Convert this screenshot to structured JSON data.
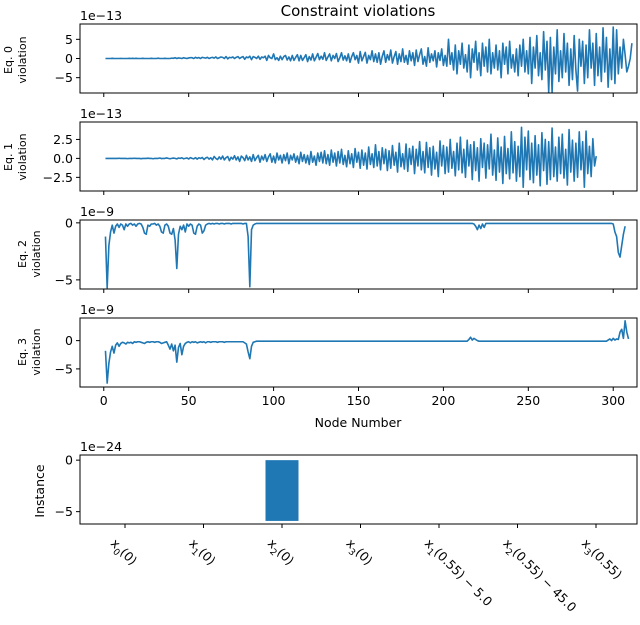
{
  "colors": {
    "series": "#1f77b4",
    "axis": "#000000",
    "background": "#ffffff"
  },
  "title": "Constraint violations",
  "xlabel": "Node Number",
  "chart_data": [
    {
      "type": "line",
      "name": "eq0",
      "ylabel_line1": "Eq. 0",
      "ylabel_line2": "violation",
      "scale_label": "1e−13",
      "ylim": [
        -9,
        9
      ],
      "xlim": [
        -14,
        314
      ],
      "yticks": [
        -5,
        0,
        5
      ],
      "ytick_labels": [
        "−5",
        "0",
        "5"
      ],
      "x_start": 1,
      "x_step": 1,
      "y": [
        0,
        0,
        0,
        0,
        0.05,
        0,
        0,
        0,
        0,
        0.03,
        0,
        0,
        0,
        0,
        0.04,
        0,
        0.06,
        0,
        0.05,
        0,
        0,
        0,
        0.04,
        0,
        0,
        0,
        0,
        0.06,
        0,
        0,
        0,
        0.08,
        0,
        0,
        0,
        0.06,
        0,
        0,
        0,
        0.1,
        0.05,
        0.2,
        0,
        0.15,
        0.1,
        0,
        0.2,
        0.08,
        0,
        0.15,
        0.2,
        0.2,
        0,
        0.3,
        0.1,
        0.25,
        0,
        0.3,
        0.2,
        0.1,
        0.3,
        0,
        0.2,
        0.3,
        0.1,
        0.4,
        0,
        0.2,
        0.4,
        0.3,
        0,
        0.5,
        -0.1,
        0.3,
        0.2,
        0.4,
        0,
        0.3,
        0.5,
        0,
        0.3,
        0.5,
        -0.2,
        0.4,
        0.2,
        0.6,
        -0.3,
        0.5,
        0.3,
        0,
        0.6,
        -0.2,
        0.4,
        0.2,
        0.6,
        -0.5,
        0.8,
        0.2,
        0,
        1.2,
        -0.3,
        0.2,
        -0.5,
        0.6,
        -0.3,
        0.5,
        0.8,
        -0.4,
        0.4,
        -0.6,
        0.8,
        -0.5,
        0.3,
        1.0,
        -0.6,
        0.8,
        -0.5,
        0.2,
        1.0,
        -0.8,
        0.5,
        -0.4,
        1.2,
        -0.6,
        0.3,
        1.3,
        -0.3,
        0.6,
        -0.2,
        1.5,
        -0.5,
        0.4,
        1.2,
        -0.6,
        0.8,
        0,
        1.3,
        -0.8,
        0.2,
        1.5,
        -0.4,
        0.7,
        -0.6,
        1.2,
        -1.0,
        0.5,
        1.5,
        -0.3,
        0.8,
        -1.2,
        1.8,
        -0.6,
        0.5,
        1.6,
        -1.2,
        0.8,
        -0.3,
        2.0,
        -0.8,
        1.2,
        -1.0,
        1.5,
        -1.5,
        0.6,
        2.0,
        -1.0,
        1.0,
        -0.4,
        2.2,
        -1.2,
        0.5,
        1.8,
        -1.5,
        1.2,
        -0.8,
        2.5,
        -1.0,
        0.8,
        -1.5,
        2.0,
        -0.6,
        1.5,
        -1.8,
        2.2,
        -0.8,
        1.0,
        2.5,
        -1.5,
        0.5,
        -2.0,
        2.8,
        -1.0,
        1.2,
        -0.6,
        2.0,
        -2.2,
        1.5,
        -0.5,
        2.5,
        -1.8,
        0.8,
        -2.0,
        5.0,
        -1.5,
        1.5,
        -3.0,
        3.5,
        -4.0,
        2.0,
        -1.5,
        4.0,
        -2.5,
        1.0,
        -3.5,
        3.5,
        -5.0,
        2.5,
        -1.0,
        4.5,
        -3.0,
        1.5,
        -4.5,
        4.0,
        -2.0,
        3.0,
        -3.5,
        5.0,
        -4.0,
        1.5,
        -2.5,
        3.5,
        -3.0,
        2.0,
        -5.0,
        4.0,
        -1.5,
        3.0,
        -4.0,
        4.5,
        -2.5,
        1.0,
        -3.5,
        2.5,
        -4.5,
        3.5,
        -2.0,
        5.0,
        -3.5,
        2.0,
        -4.0,
        5.5,
        -6.5,
        3.0,
        -2.5,
        6.0,
        -4.5,
        1.5,
        -5.5,
        7.0,
        -3.0,
        4.5,
        -8.8,
        5.5,
        -8.8,
        3.0,
        -4.0,
        7.5,
        -6.0,
        2.0,
        -5.0,
        6.5,
        -3.5,
        4.0,
        -7.0,
        2.5,
        -5.5,
        6.0,
        -3.0,
        -8.5,
        5.0,
        -2.0,
        4.5,
        -6.5,
        3.5,
        -5.0,
        7.5,
        -2.5,
        4.0,
        -7.0,
        6.5,
        -4.5,
        3.0,
        -6.0,
        8.0,
        -3.5,
        5.5,
        -7.5,
        2.5,
        -5.5,
        8.2,
        -6.5,
        7.5,
        -4.0,
        3.0,
        -2.5,
        5.0,
        1.0,
        -3.5,
        -2.0,
        0,
        4.0
      ]
    },
    {
      "type": "line",
      "name": "eq1",
      "ylabel_line1": "Eq. 1",
      "ylabel_line2": "violation",
      "scale_label": "1e−13",
      "ylim": [
        -4.3,
        4.8
      ],
      "xlim": [
        -14,
        314
      ],
      "yticks": [
        -2.5,
        0,
        2.5
      ],
      "ytick_labels": [
        "−2.5",
        "0.0",
        "2.5"
      ],
      "x_start": 1,
      "x_step": 1,
      "y": [
        0,
        0,
        0,
        0,
        0,
        0,
        0,
        0,
        0.02,
        0,
        0,
        0,
        0,
        -0.03,
        0,
        0,
        0,
        0.02,
        0,
        0,
        0,
        -0.04,
        0,
        0,
        0,
        0.03,
        0,
        0,
        -0.05,
        0,
        0,
        0,
        0.05,
        -0.02,
        0,
        0,
        0.06,
        0,
        -0.05,
        0,
        0.04,
        0,
        -0.06,
        0.05,
        0,
        0.08,
        -0.05,
        0,
        0.06,
        -0.08,
        0.1,
        0,
        -0.06,
        0.1,
        -0.1,
        0.08,
        0,
        0.12,
        -0.15,
        0.05,
        0.15,
        -0.1,
        0.08,
        -0.2,
        0.25,
        0,
        -0.15,
        0.2,
        -0.1,
        0.3,
        -0.2,
        0.1,
        0.25,
        -0.3,
        0.15,
        -0.1,
        0.35,
        -0.2,
        0.2,
        -0.4,
        0.3,
        0.1,
        -0.3,
        0.4,
        -0.2,
        0.2,
        -0.4,
        0.5,
        -0.3,
        0.1,
        0.4,
        -0.5,
        0.3,
        -0.2,
        0.5,
        -0.4,
        0.2,
        0.6,
        -0.5,
        0.3,
        -0.6,
        0.7,
        -0.2,
        0.4,
        -0.6,
        0.5,
        -0.3,
        0.7,
        -0.7,
        0.4,
        -0.2,
        0.6,
        -0.5,
        0.3,
        -0.7,
        0.8,
        -0.4,
        0.5,
        -0.6,
        0.4,
        -0.8,
        0.9,
        -0.5,
        0.3,
        -0.9,
        0.7,
        -0.4,
        0.8,
        -0.6,
        1.0,
        -0.7,
        0.5,
        -0.9,
        1.1,
        -0.5,
        0.7,
        -1.0,
        0.9,
        -0.6,
        1.2,
        -0.8,
        0.4,
        -1.1,
        1.0,
        -0.7,
        0.6,
        -1.2,
        1.3,
        -0.5,
        0.8,
        -1.3,
        1.1,
        -0.9,
        0.7,
        -1.4,
        1.5,
        -0.8,
        0.6,
        -1.2,
        1.8,
        -1.0,
        0.9,
        -1.5,
        1.4,
        -0.7,
        1.2,
        -1.6,
        1.0,
        -1.3,
        1.7,
        -0.9,
        0.8,
        -1.8,
        2.0,
        -1.1,
        0.6,
        -1.4,
        1.9,
        -1.7,
        1.3,
        -0.8,
        1.6,
        -2.0,
        1.2,
        -1.0,
        2.2,
        -1.5,
        0.9,
        -1.9,
        2.1,
        -1.2,
        1.4,
        -2.2,
        1.6,
        -1.4,
        0.8,
        -2.4,
        2.3,
        -1.0,
        1.7,
        -2.0,
        1.5,
        -1.8,
        2.5,
        -1.3,
        0.9,
        -2.3,
        2.0,
        -1.5,
        2.8,
        -1.9,
        1.2,
        -2.5,
        2.4,
        -1.0,
        1.8,
        -2.8,
        2.2,
        -1.6,
        1.4,
        -3.0,
        2.6,
        -1.2,
        2.0,
        -2.6,
        1.8,
        -1.4,
        3.2,
        -2.2,
        1.1,
        -2.9,
        2.7,
        -1.8,
        1.5,
        -3.3,
        2.9,
        -2.0,
        1.3,
        -2.7,
        3.5,
        -1.9,
        2.2,
        -3.0,
        1.6,
        -2.4,
        4.1,
        -3.8,
        2.8,
        -1.5,
        3.6,
        -2.8,
        2.0,
        -3.2,
        3.0,
        -2.2,
        1.8,
        -3.6,
        3.4,
        -1.6,
        2.5,
        -3.4,
        2.2,
        -2.8,
        4.0,
        -2.4,
        1.5,
        -3.0,
        2.8,
        -2.0,
        3.2,
        -2.6,
        1.2,
        -3.5,
        3.8,
        -1.8,
        2.4,
        -3.0,
        2.0,
        -2.5,
        3.5,
        -1.5,
        2.2,
        -3.8,
        3.6,
        -2.0,
        1.6,
        -2.4,
        2.6,
        -1.0,
        0.3
      ]
    },
    {
      "type": "line",
      "name": "eq2",
      "ylabel_line1": "Eq. 2",
      "ylabel_line2": "violation",
      "scale_label": "1e−9",
      "ylim": [
        -5.8,
        0.25
      ],
      "xlim": [
        -14,
        314
      ],
      "yticks": [
        -5,
        0
      ],
      "ytick_labels": [
        "−5",
        "0"
      ],
      "x_start": 1,
      "x_step": 1,
      "y": [
        -1.2,
        -5.7,
        -2.0,
        -0.8,
        -0.2,
        -0.9,
        -0.3,
        -0.1,
        -0.4,
        -0.1,
        -0.2,
        -0.6,
        -0.1,
        -0.3,
        -0.1,
        -0.05,
        -0.2,
        -0.1,
        -0.3,
        -0.1,
        -0.05,
        -0.1,
        -0.4,
        -0.9,
        -1.0,
        -0.2,
        -0.3,
        -0.1,
        -0.1,
        -0.05,
        -0.2,
        -0.1,
        -0.3,
        -0.8,
        -0.9,
        -0.2,
        -0.1,
        -0.3,
        -0.9,
        -1.0,
        -0.5,
        -1.5,
        -4.0,
        -1.0,
        -0.3,
        -0.6,
        -0.2,
        -0.8,
        -0.1,
        -0.3,
        -0.1,
        -0.2,
        -0.9,
        -1.0,
        -0.3,
        -0.1,
        -0.2,
        -0.9,
        -0.7,
        -0.2,
        -0.1,
        -0.05,
        -0.1,
        -0.05,
        -0.1,
        -0.05,
        -0.05,
        -0.1,
        -0.05,
        -0.05,
        -0.1,
        -0.05,
        -0.05,
        -0.05,
        -0.1,
        -0.05,
        -0.05,
        -0.05,
        -0.05,
        -0.05,
        -0.05,
        -0.1,
        -0.05,
        -0.05,
        -1.2,
        -5.6,
        -0.6,
        -0.2,
        -0.1,
        -0.05,
        -0.05,
        -0.05,
        -0.05,
        -0.05,
        -0.05,
        -0.05,
        -0.05,
        -0.05,
        -0.05,
        -0.05,
        -0.05,
        -0.05,
        -0.05,
        -0.05,
        -0.05,
        -0.05,
        -0.05,
        -0.05,
        -0.05,
        -0.05,
        -0.05,
        -0.05,
        -0.05,
        -0.05,
        -0.05,
        -0.05,
        -0.05,
        -0.05,
        -0.05,
        -0.05,
        -0.05,
        -0.05,
        -0.05,
        -0.05,
        -0.05,
        -0.05,
        -0.05,
        -0.05,
        -0.05,
        -0.05,
        -0.05,
        -0.05,
        -0.05,
        -0.05,
        -0.05,
        -0.05,
        -0.05,
        -0.05,
        -0.05,
        -0.05,
        -0.05,
        -0.05,
        -0.05,
        -0.05,
        -0.05,
        -0.05,
        -0.05,
        -0.05,
        -0.05,
        -0.05,
        -0.05,
        -0.05,
        -0.05,
        -0.05,
        -0.05,
        -0.05,
        -0.05,
        -0.05,
        -0.05,
        -0.05,
        -0.05,
        -0.05,
        -0.05,
        -0.05,
        -0.05,
        -0.05,
        -0.05,
        -0.05,
        -0.05,
        -0.05,
        -0.05,
        -0.05,
        -0.05,
        -0.05,
        -0.05,
        -0.05,
        -0.05,
        -0.05,
        -0.05,
        -0.05,
        -0.05,
        -0.05,
        -0.05,
        -0.05,
        -0.05,
        -0.05,
        -0.05,
        -0.05,
        -0.05,
        -0.05,
        -0.05,
        -0.05,
        -0.05,
        -0.05,
        -0.05,
        -0.05,
        -0.05,
        -0.05,
        -0.05,
        -0.05,
        -0.05,
        -0.05,
        -0.05,
        -0.05,
        -0.05,
        -0.05,
        -0.05,
        -0.05,
        -0.05,
        -0.05,
        -0.05,
        -0.05,
        -0.05,
        -0.05,
        -0.05,
        -0.05,
        -0.05,
        -0.1,
        -0.3,
        -0.6,
        -0.2,
        -0.5,
        -0.1,
        -0.4,
        -0.05,
        -0.05,
        -0.05,
        -0.05,
        -0.05,
        -0.05,
        -0.05,
        -0.05,
        -0.05,
        -0.05,
        -0.05,
        -0.05,
        -0.05,
        -0.05,
        -0.05,
        -0.05,
        -0.05,
        -0.05,
        -0.05,
        -0.05,
        -0.05,
        -0.05,
        -0.05,
        -0.05,
        -0.05,
        -0.05,
        -0.05,
        -0.05,
        -0.05,
        -0.05,
        -0.05,
        -0.05,
        -0.05,
        -0.05,
        -0.05,
        -0.05,
        -0.05,
        -0.05,
        -0.05,
        -0.05,
        -0.05,
        -0.05,
        -0.05,
        -0.05,
        -0.05,
        -0.05,
        -0.05,
        -0.05,
        -0.05,
        -0.05,
        -0.05,
        -0.05,
        -0.05,
        -0.05,
        -0.05,
        -0.05,
        -0.05,
        -0.05,
        -0.05,
        -0.05,
        -0.05,
        -0.05,
        -0.05,
        -0.05,
        -0.05,
        -0.05,
        -0.05,
        -0.05,
        -0.05,
        -0.05,
        -0.05,
        -0.05,
        -0.05,
        -0.05,
        -0.05,
        -0.1,
        -0.8,
        -1.2,
        -2.6,
        -3.0,
        -2.0,
        -1.0,
        -0.3
      ]
    },
    {
      "type": "line",
      "name": "eq3",
      "ylabel_line1": "Eq. 3",
      "ylabel_line2": "violation",
      "scale_label": "1e−9",
      "ylim": [
        -8.2,
        4.0
      ],
      "xlim": [
        -14,
        314
      ],
      "yticks": [
        -5,
        0
      ],
      "ytick_labels": [
        "−5",
        "0"
      ],
      "x_start": 1,
      "x_step": 1,
      "y": [
        -1.8,
        -7.5,
        -4.0,
        -2.0,
        -1.0,
        -2.2,
        -0.8,
        -0.4,
        -1.0,
        -0.5,
        -0.3,
        -0.4,
        -0.6,
        -0.3,
        -0.4,
        -0.3,
        -0.5,
        -0.2,
        -0.3,
        -0.2,
        -0.2,
        -0.3,
        -0.4,
        -0.5,
        -0.3,
        -0.2,
        -0.3,
        -0.2,
        -0.2,
        -0.3,
        -0.2,
        -0.2,
        -0.3,
        -0.5,
        -0.4,
        -0.3,
        -0.2,
        -0.8,
        -1.5,
        -0.6,
        -1.8,
        -0.8,
        -3.8,
        -1.2,
        -0.5,
        -2.5,
        -1.0,
        -0.5,
        -0.3,
        -0.2,
        -0.4,
        -0.2,
        -0.3,
        -0.2,
        -0.4,
        -0.3,
        -0.2,
        -0.3,
        -0.2,
        -0.4,
        -0.2,
        -0.2,
        -0.3,
        -0.2,
        -0.2,
        -0.2,
        -0.3,
        -0.2,
        -0.2,
        -0.2,
        -0.3,
        -0.2,
        -0.2,
        -0.2,
        -0.2,
        -0.2,
        -0.2,
        -0.2,
        -0.2,
        -0.2,
        -0.2,
        -0.2,
        -0.4,
        -0.6,
        -2.0,
        -3.2,
        -1.0,
        -0.3,
        -0.2,
        -0.1,
        -0.1,
        -0.1,
        -0.1,
        -0.1,
        -0.1,
        -0.1,
        -0.1,
        -0.1,
        -0.1,
        -0.1,
        -0.1,
        -0.1,
        -0.1,
        -0.1,
        -0.1,
        -0.1,
        -0.1,
        -0.1,
        -0.1,
        -0.1,
        -0.1,
        -0.1,
        -0.1,
        -0.1,
        -0.1,
        -0.1,
        -0.1,
        -0.1,
        -0.1,
        -0.1,
        -0.1,
        -0.1,
        -0.1,
        -0.1,
        -0.1,
        -0.1,
        -0.1,
        -0.1,
        -0.1,
        -0.1,
        -0.1,
        -0.1,
        -0.1,
        -0.1,
        -0.1,
        -0.1,
        -0.1,
        -0.1,
        -0.1,
        -0.1,
        -0.1,
        -0.1,
        -0.1,
        -0.1,
        -0.1,
        -0.1,
        -0.1,
        -0.1,
        -0.1,
        -0.1,
        -0.1,
        -0.1,
        -0.1,
        -0.1,
        -0.1,
        -0.1,
        -0.1,
        -0.1,
        -0.1,
        -0.1,
        -0.1,
        -0.1,
        -0.1,
        -0.1,
        -0.1,
        -0.1,
        -0.1,
        -0.1,
        -0.1,
        -0.1,
        -0.1,
        -0.1,
        -0.1,
        -0.1,
        -0.1,
        -0.1,
        -0.1,
        -0.1,
        -0.1,
        -0.1,
        -0.1,
        -0.1,
        -0.1,
        -0.1,
        -0.1,
        -0.1,
        -0.1,
        -0.1,
        -0.1,
        -0.1,
        -0.1,
        -0.1,
        -0.1,
        -0.1,
        -0.1,
        -0.1,
        -0.1,
        -0.1,
        -0.1,
        -0.1,
        -0.1,
        -0.1,
        -0.1,
        -0.1,
        -0.1,
        -0.1,
        -0.1,
        -0.1,
        -0.1,
        -0.1,
        -0.1,
        -0.1,
        -0.1,
        -0.1,
        0.2,
        0.6,
        0.1,
        0.4,
        0.2,
        0.0,
        -0.1,
        -0.1,
        -0.1,
        -0.1,
        -0.1,
        -0.1,
        -0.1,
        -0.1,
        -0.1,
        -0.1,
        -0.1,
        -0.1,
        -0.1,
        -0.1,
        -0.1,
        -0.1,
        -0.1,
        -0.1,
        -0.1,
        -0.1,
        -0.1,
        -0.1,
        -0.1,
        -0.1,
        -0.1,
        -0.1,
        -0.1,
        -0.1,
        -0.1,
        -0.1,
        -0.1,
        -0.1,
        -0.1,
        -0.1,
        -0.1,
        -0.1,
        -0.1,
        -0.1,
        -0.1,
        -0.1,
        -0.1,
        -0.1,
        -0.1,
        -0.1,
        -0.1,
        -0.1,
        -0.1,
        -0.1,
        -0.1,
        -0.1,
        -0.1,
        -0.1,
        -0.1,
        -0.1,
        -0.1,
        -0.1,
        -0.1,
        -0.1,
        -0.1,
        -0.1,
        -0.1,
        -0.1,
        -0.1,
        -0.1,
        -0.1,
        -0.1,
        -0.1,
        -0.1,
        -0.1,
        -0.1,
        -0.1,
        -0.1,
        -0.1,
        -0.1,
        -0.1,
        -0.1,
        0.1,
        0.3,
        0.0,
        0.4,
        0.1,
        0.3,
        0.2,
        1.5,
        2.0,
        0.4,
        3.5,
        1.5,
        0.3
      ]
    },
    {
      "type": "bar",
      "name": "instance",
      "ylabel": "Instance",
      "scale_label": "1e−24",
      "ylim": [
        -6.2,
        0.5
      ],
      "yticks": [
        -5,
        0
      ],
      "ytick_labels": [
        "−5",
        "0"
      ],
      "categories": [
        {
          "base": "x",
          "sub": "0",
          "suffix": "(0)"
        },
        {
          "base": "x",
          "sub": "1",
          "suffix": "(0)"
        },
        {
          "base": "x",
          "sub": "2",
          "suffix": "(0)"
        },
        {
          "base": "x",
          "sub": "3",
          "suffix": "(0)"
        },
        {
          "base": "x",
          "sub": "1",
          "suffix": "(0.55) − 5.0"
        },
        {
          "base": "x",
          "sub": "2",
          "suffix": "(0.55) − 45.0"
        },
        {
          "base": "x",
          "sub": "3",
          "suffix": "(0.55)"
        }
      ],
      "values": [
        0,
        0,
        -5.9,
        0,
        0,
        0,
        0
      ]
    }
  ],
  "xticks": [
    0,
    50,
    100,
    150,
    200,
    250,
    300
  ],
  "xtick_labels": [
    "0",
    "50",
    "100",
    "150",
    "200",
    "250",
    "300"
  ]
}
